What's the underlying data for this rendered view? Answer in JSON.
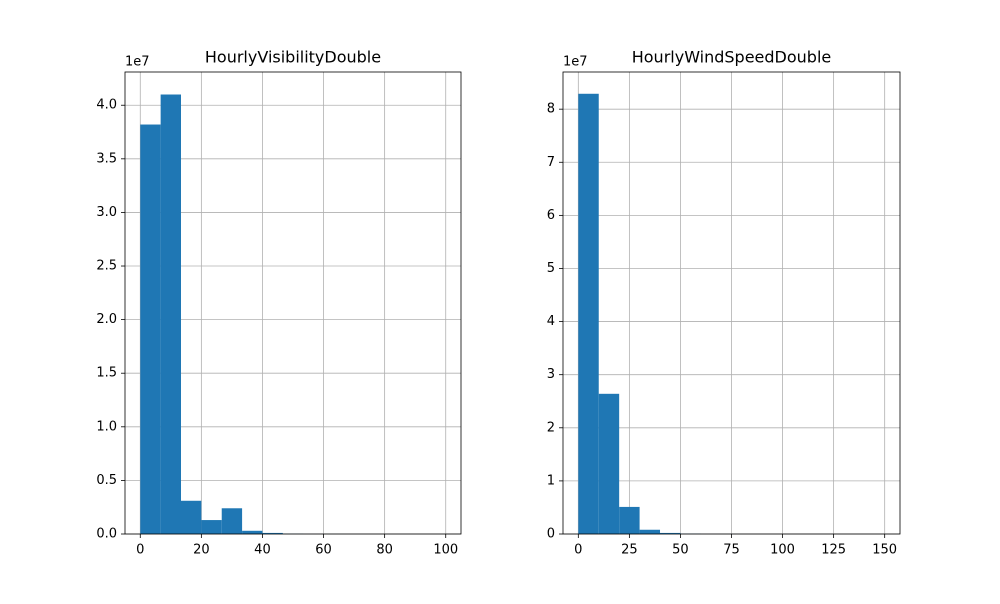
{
  "chart_data": [
    {
      "type": "histogram",
      "title": "HourlyVisibilityDouble",
      "offset_label": "1e7",
      "color": "#1f77b4",
      "grid": true,
      "bins": [
        0,
        6.666666666666667,
        13.333333333333334,
        20,
        26.666666666666668,
        33.333333333333336,
        40,
        46.66666666666667,
        53.333333333333336,
        60,
        66.66666666666667,
        73.33333333333334,
        80,
        86.66666666666667,
        93.33333333333334,
        100
      ],
      "values": [
        38200000,
        41000000,
        3100000,
        1300000,
        2400000,
        300000,
        100000,
        20000,
        5000,
        2000,
        1000,
        500,
        300,
        200,
        100
      ],
      "xlim": [
        -5,
        105
      ],
      "xticks": [
        0,
        20,
        40,
        60,
        80,
        100
      ],
      "ylim": [
        0,
        43100000
      ],
      "yticks": [
        {
          "value": 0,
          "label": "0.0"
        },
        {
          "value": 5000000,
          "label": "0.5"
        },
        {
          "value": 10000000,
          "label": "1.0"
        },
        {
          "value": 15000000,
          "label": "1.5"
        },
        {
          "value": 20000000,
          "label": "2.0"
        },
        {
          "value": 25000000,
          "label": "2.5"
        },
        {
          "value": 30000000,
          "label": "3.0"
        },
        {
          "value": 35000000,
          "label": "3.5"
        },
        {
          "value": 40000000,
          "label": "4.0"
        }
      ]
    },
    {
      "type": "histogram",
      "title": "HourlyWindSpeedDouble",
      "offset_label": "1e7",
      "color": "#1f77b4",
      "grid": true,
      "bins": [
        0,
        10,
        20,
        30,
        40,
        50,
        60,
        70,
        80,
        90,
        100,
        110,
        120,
        130,
        140,
        150
      ],
      "values": [
        82900000,
        26400000,
        5100000,
        800000,
        200000,
        50000,
        10000,
        5000,
        2000,
        1000,
        500,
        300,
        200,
        100,
        100
      ],
      "xlim": [
        -7.5,
        157.5
      ],
      "xticks": [
        0,
        25,
        50,
        75,
        100,
        125,
        150
      ],
      "ylim": [
        0,
        87000000
      ],
      "yticks": [
        {
          "value": 0,
          "label": "0"
        },
        {
          "value": 10000000,
          "label": "1"
        },
        {
          "value": 20000000,
          "label": "2"
        },
        {
          "value": 30000000,
          "label": "3"
        },
        {
          "value": 40000000,
          "label": "4"
        },
        {
          "value": 50000000,
          "label": "5"
        },
        {
          "value": 60000000,
          "label": "6"
        },
        {
          "value": 70000000,
          "label": "7"
        },
        {
          "value": 80000000,
          "label": "8"
        }
      ]
    }
  ]
}
